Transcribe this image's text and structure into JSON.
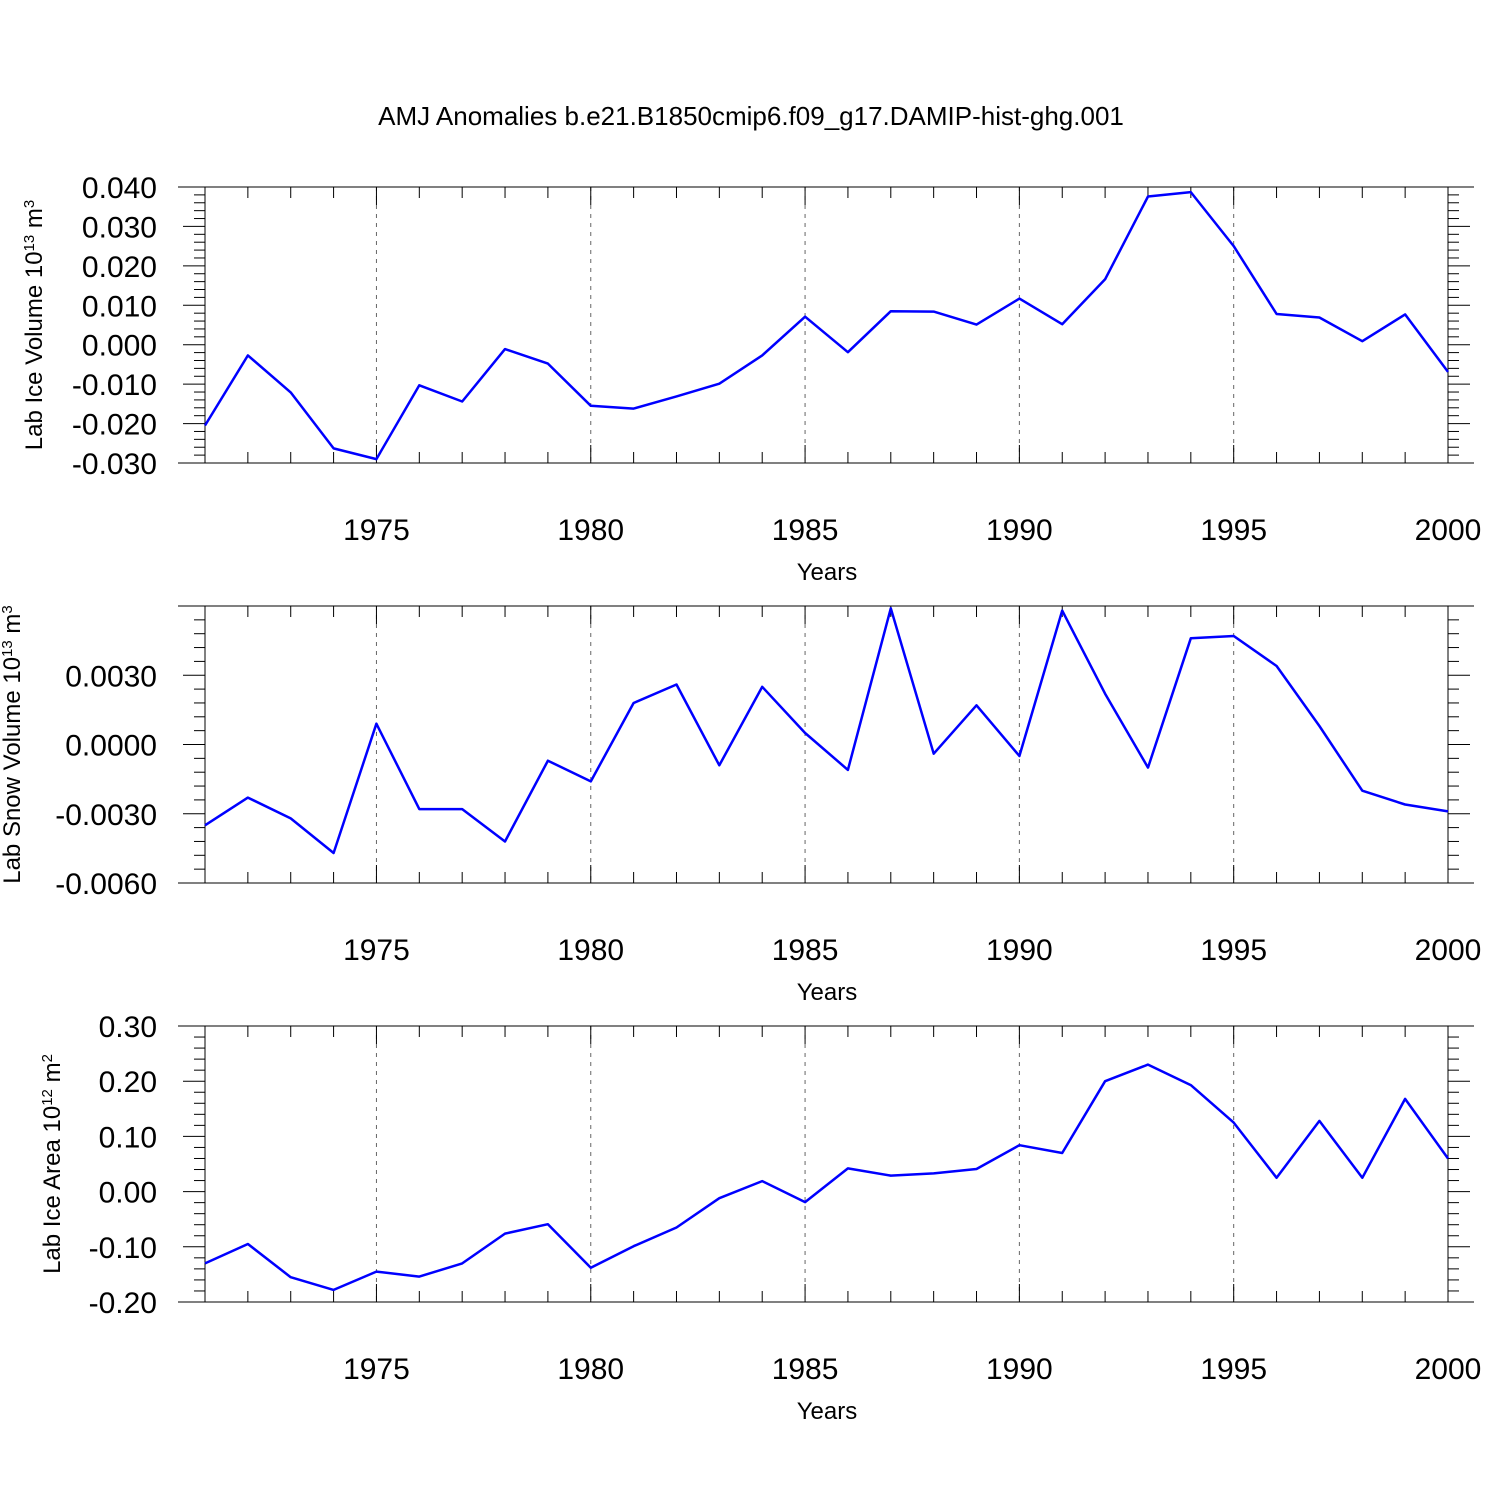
{
  "title": "AMJ Anomalies b.e21.B1850cmip6.f09_g17.DAMIP-hist-ghg.001",
  "colors": {
    "series": "#0000ff",
    "axis": "#000000",
    "grid": "#666666"
  },
  "chart_data": [
    {
      "type": "line",
      "name": "lab-ice-volume",
      "title": "AMJ Anomalies b.e21.B1850cmip6.f09_g17.DAMIP-hist-ghg.001",
      "ylabel": "Lab Ice Volume 10",
      "ylabel_sup": "13",
      "ylabel_unit": " m",
      "ylabel_unit_sup": "3",
      "xlabel": "Years",
      "xlim": [
        1971,
        2000
      ],
      "ylim": [
        -0.03,
        0.04
      ],
      "yticks": [
        -0.03,
        -0.02,
        -0.01,
        0.0,
        0.01,
        0.02,
        0.03,
        0.04
      ],
      "yticklabels": [
        "-0.030",
        "-0.020",
        "-0.010",
        "0.000",
        "0.010",
        "0.020",
        "0.030",
        "0.040"
      ],
      "xticks": [
        1975,
        1980,
        1985,
        1990,
        1995,
        2000
      ],
      "xticklabels": [
        "1975",
        "1980",
        "1985",
        "1990",
        "1995",
        "2000"
      ],
      "grid_x": true,
      "x": [
        1971,
        1972,
        1973,
        1974,
        1975,
        1976,
        1977,
        1978,
        1979,
        1980,
        1981,
        1982,
        1983,
        1984,
        1985,
        1986,
        1987,
        1988,
        1989,
        1990,
        1991,
        1992,
        1993,
        1994,
        1995,
        1996,
        1997,
        1998,
        1999,
        2000
      ],
      "y": [
        -0.0205,
        -0.0027,
        -0.0121,
        -0.0263,
        -0.029,
        -0.0103,
        -0.0144,
        -0.0011,
        -0.0048,
        -0.0155,
        -0.0162,
        -0.0131,
        -0.0099,
        -0.0027,
        0.0071,
        -0.0019,
        0.0085,
        0.0084,
        0.0051,
        0.0117,
        0.0052,
        0.0166,
        0.0376,
        0.0387,
        0.025,
        0.0078,
        0.0069,
        0.0009,
        0.0077,
        -0.0069
      ]
    },
    {
      "type": "line",
      "name": "lab-snow-volume",
      "ylabel": "Lab Snow Volume 10",
      "ylabel_sup": "13",
      "ylabel_unit": " m",
      "ylabel_unit_sup": "3",
      "xlabel": "Years",
      "xlim": [
        1971,
        2000
      ],
      "ylim": [
        -0.006,
        0.006
      ],
      "yticks": [
        -0.006,
        -0.003,
        0.0,
        0.003
      ],
      "yticklabels": [
        "-0.0060",
        "-0.0030",
        "0.0000",
        "0.0030"
      ],
      "xticks": [
        1975,
        1980,
        1985,
        1990,
        1995,
        2000
      ],
      "xticklabels": [
        "1975",
        "1980",
        "1985",
        "1990",
        "1995",
        "2000"
      ],
      "grid_x": true,
      "x": [
        1971,
        1972,
        1973,
        1974,
        1975,
        1976,
        1977,
        1978,
        1979,
        1980,
        1981,
        1982,
        1983,
        1984,
        1985,
        1986,
        1987,
        1988,
        1989,
        1990,
        1991,
        1992,
        1993,
        1994,
        1995,
        1996,
        1997,
        1998,
        1999,
        2000
      ],
      "y": [
        -0.0035,
        -0.0023,
        -0.0032,
        -0.0047,
        0.0009,
        -0.0028,
        -0.0028,
        -0.0042,
        -0.0007,
        -0.0016,
        0.0018,
        0.0026,
        -0.0009,
        0.0025,
        0.0005,
        -0.0011,
        0.0059,
        -0.0004,
        0.0017,
        -0.0005,
        0.0058,
        0.0022,
        -0.001,
        0.0046,
        0.0047,
        0.0034,
        0.0008,
        -0.002,
        -0.0026,
        -0.0029
      ]
    },
    {
      "type": "line",
      "name": "lab-ice-area",
      "ylabel": "Lab Ice Area 10",
      "ylabel_sup": "12",
      "ylabel_unit": " m",
      "ylabel_unit_sup": "2",
      "xlabel": "Years",
      "xlim": [
        1971,
        2000
      ],
      "ylim": [
        -0.2,
        0.3
      ],
      "yticks": [
        -0.2,
        -0.1,
        0.0,
        0.1,
        0.2,
        0.3
      ],
      "yticklabels": [
        "-0.20",
        "-0.10",
        "0.00",
        "0.10",
        "0.20",
        "0.30"
      ],
      "xticks": [
        1975,
        1980,
        1985,
        1990,
        1995,
        2000
      ],
      "xticklabels": [
        "1975",
        "1980",
        "1985",
        "1990",
        "1995",
        "2000"
      ],
      "grid_x": true,
      "x": [
        1971,
        1972,
        1973,
        1974,
        1975,
        1976,
        1977,
        1978,
        1979,
        1980,
        1981,
        1982,
        1983,
        1984,
        1985,
        1986,
        1987,
        1988,
        1989,
        1990,
        1991,
        1992,
        1993,
        1994,
        1995,
        1996,
        1997,
        1998,
        1999,
        2000
      ],
      "y": [
        -0.13,
        -0.095,
        -0.155,
        -0.178,
        -0.145,
        -0.154,
        -0.13,
        -0.076,
        -0.059,
        -0.138,
        -0.099,
        -0.065,
        -0.012,
        0.019,
        -0.019,
        0.042,
        0.029,
        0.033,
        0.041,
        0.084,
        0.07,
        0.2,
        0.23,
        0.193,
        0.125,
        0.025,
        0.128,
        0.025,
        0.168,
        0.06
      ]
    }
  ]
}
